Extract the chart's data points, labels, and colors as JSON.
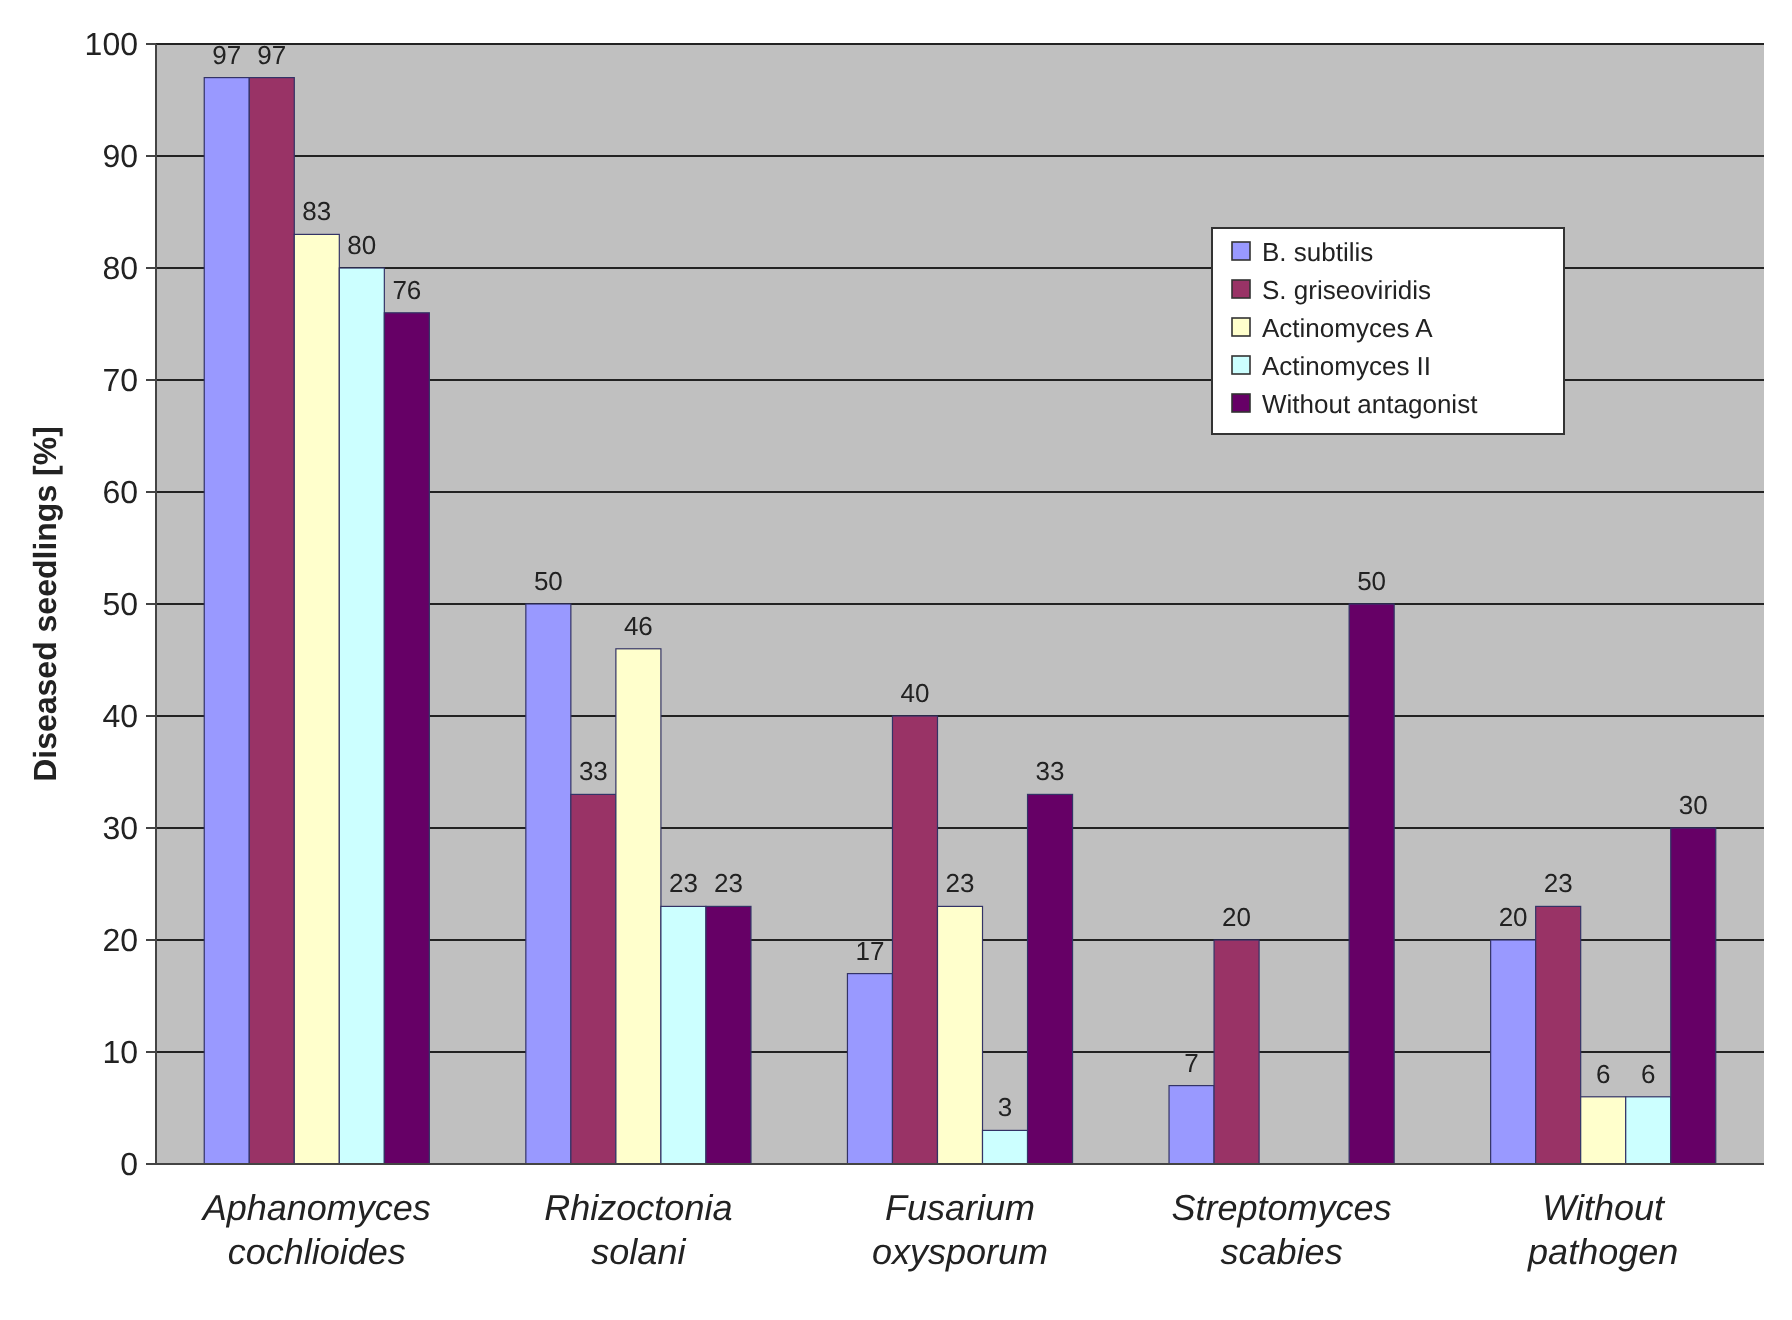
{
  "chart_data": {
    "type": "bar",
    "ylabel": "Diseased seedlings [%]",
    "categories": [
      "Aphanomyces cochlioides",
      "Rhizoctonia solani",
      "Fusarium oxysporum",
      "Streptomyces scabies",
      "Without pathogen"
    ],
    "series": [
      {
        "name": "B. subtilis",
        "color": "#9999ff",
        "values": [
          97,
          50,
          17,
          7,
          20
        ],
        "value_labels": [
          "97",
          "50",
          "17",
          "7",
          "20"
        ]
      },
      {
        "name": "S. griseoviridis",
        "color": "#993366",
        "values": [
          97,
          33,
          40,
          20,
          23
        ],
        "value_labels": [
          "97",
          "33",
          "40",
          "20",
          "23"
        ]
      },
      {
        "name": "Actinomyces A",
        "color": "#ffffcc",
        "values": [
          83,
          46,
          23,
          0,
          6
        ],
        "value_labels": [
          "83",
          "46",
          "23",
          null,
          "6"
        ]
      },
      {
        "name": "Actinomyces II",
        "color": "#ccffff",
        "values": [
          80,
          23,
          3,
          0,
          6
        ],
        "value_labels": [
          "80",
          "23",
          "3",
          null,
          "6"
        ]
      },
      {
        "name": "Without antagonist",
        "color": "#660066",
        "values": [
          76,
          23,
          33,
          50,
          30
        ],
        "value_labels": [
          "76",
          "23",
          "33",
          "50",
          "30"
        ]
      }
    ],
    "ylim": [
      0,
      100
    ],
    "yticks": [
      0,
      10,
      20,
      30,
      40,
      50,
      60,
      70,
      80,
      90,
      100
    ],
    "grid": "y",
    "legend": "top right"
  }
}
